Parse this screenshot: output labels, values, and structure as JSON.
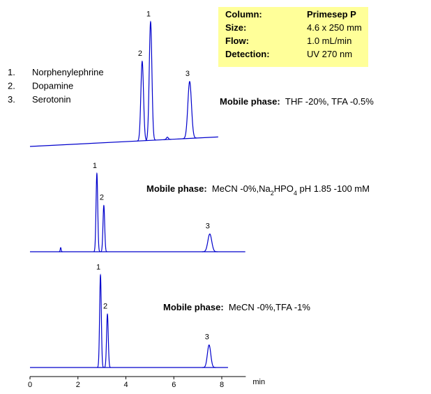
{
  "compounds": [
    {
      "number": "1.",
      "name": "Norphenylephrine"
    },
    {
      "number": "2.",
      "name": "Dopamine"
    },
    {
      "number": "3.",
      "name": "Serotonin"
    }
  ],
  "conditions": [
    [
      "Column:",
      "Primesep P"
    ],
    [
      "Size:",
      "4.6 x 250 mm"
    ],
    [
      "Flow:",
      "1.0 mL/min"
    ],
    [
      "Detection:",
      "UV 270 nm"
    ]
  ],
  "chart_data": {
    "type": "chromatogram",
    "x_label": "min",
    "xlim": [
      0,
      9
    ],
    "xticks": [
      0,
      2,
      4,
      6,
      8
    ],
    "color": "#0000cc",
    "traces": [
      {
        "mobile_phase_label": "Mobile phase:",
        "mobile_phase": [
          {
            "text": "THF -20%, TFA -0.5%"
          }
        ],
        "end": 7.85,
        "baseline": [
          0,
          8
        ],
        "peaks": [
          {
            "label": "2",
            "time": 4.68,
            "height": 67,
            "width": 0.055
          },
          {
            "label": "1",
            "time": 5.03,
            "height": 100,
            "width": 0.055
          },
          {
            "label": null,
            "time": 5.73,
            "height": 2,
            "width": 0.04
          },
          {
            "label": "3",
            "time": 6.66,
            "height": 48,
            "width": 0.075
          }
        ]
      },
      {
        "mobile_phase_label": "Mobile phase:",
        "mobile_phase": [
          {
            "text": "MeCN -0%,Na"
          },
          {
            "sub": "2"
          },
          {
            "text": "HPO"
          },
          {
            "sub": "4"
          },
          {
            "text": " pH 1.85 -100 mM"
          }
        ],
        "end": 8.98,
        "baseline": [
          0,
          0
        ],
        "peaks": [
          {
            "label": null,
            "time": 1.28,
            "height": 3.5,
            "width": 0.02
          },
          {
            "label": "1",
            "time": 2.79,
            "height": 66,
            "width": 0.035
          },
          {
            "label": "2",
            "time": 3.08,
            "height": 39,
            "width": 0.035
          },
          {
            "label": "3",
            "time": 7.5,
            "height": 15,
            "width": 0.08
          }
        ]
      },
      {
        "mobile_phase_label": "Mobile phase:",
        "mobile_phase": [
          {
            "text": "MeCN -0%,TFA -1%"
          }
        ],
        "end": 8.26,
        "baseline": [
          0,
          0
        ],
        "peaks": [
          {
            "label": "1",
            "time": 2.94,
            "height": 78,
            "width": 0.035
          },
          {
            "label": "2",
            "time": 3.23,
            "height": 45,
            "width": 0.035
          },
          {
            "label": "3",
            "time": 7.47,
            "height": 19,
            "width": 0.07
          }
        ]
      }
    ]
  }
}
